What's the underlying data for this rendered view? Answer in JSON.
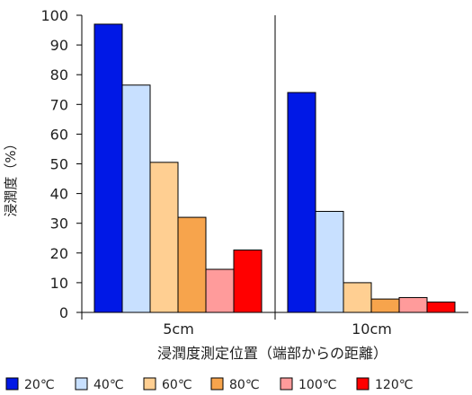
{
  "chart_data": {
    "type": "bar",
    "categories": [
      "5cm",
      "10cm"
    ],
    "series": [
      {
        "name": "20℃",
        "color": "#0018e6",
        "values": [
          97,
          74
        ]
      },
      {
        "name": "40℃",
        "color": "#c8e0ff",
        "values": [
          76.5,
          34
        ]
      },
      {
        "name": "60℃",
        "color": "#ffcf92",
        "values": [
          50.5,
          10
        ]
      },
      {
        "name": "80℃",
        "color": "#f7a44c",
        "values": [
          32,
          4.5
        ]
      },
      {
        "name": "100℃",
        "color": "#ff9b9b",
        "values": [
          14.5,
          5
        ]
      },
      {
        "name": "120℃",
        "color": "#ff0000",
        "values": [
          21,
          3.5
        ]
      }
    ],
    "title": "",
    "xlabel": "浸潤度測定位置（端部からの距離）",
    "ylabel": "浸潤度（%）",
    "ylim": [
      0,
      100
    ],
    "yticks": [
      0,
      10,
      20,
      30,
      40,
      50,
      60,
      70,
      80,
      90,
      100
    ],
    "grid": false,
    "legend_position": "bottom"
  }
}
